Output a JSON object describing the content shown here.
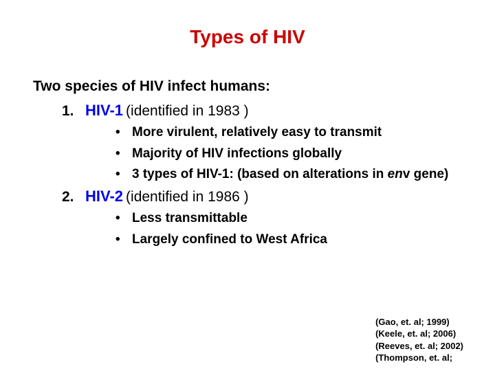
{
  "title": "Types of HIV",
  "intro": "Two species of HIV infect humans:",
  "items": [
    {
      "num": "1.",
      "name": "HIV-1",
      "detail": "(identified in 1983 )",
      "bullets": [
        {
          "text": "More virulent, relatively easy to transmit"
        },
        {
          "text": "Majority of HIV infections globally"
        },
        {
          "prefix": "3 types of HIV-1:  (based on alterations in ",
          "italic": "en",
          "suffix": "v gene)"
        }
      ]
    },
    {
      "num": "2.",
      "name": "HIV-2",
      "detail": "(identified in 1986 )",
      "bullets": [
        {
          "text": "Less transmittable"
        },
        {
          "text": "Largely confined to West Africa"
        }
      ]
    }
  ],
  "refs": [
    "(Gao, et. al; 1999)",
    "(Keele, et. al; 2006)",
    "(Reeves, et. al; 2002)",
    "(Thompson, et. al;"
  ],
  "colors": {
    "title": "#cc0000",
    "link": "#0000ee",
    "text": "#000000",
    "background": "#ffffff"
  },
  "fonts": {
    "title_size": 28,
    "body_size": 21,
    "bullet_size": 19,
    "ref_size": 13
  }
}
